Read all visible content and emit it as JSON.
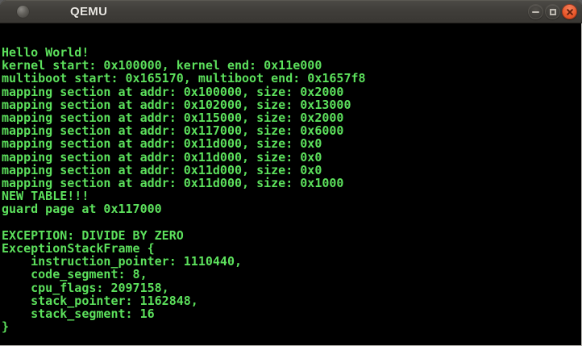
{
  "window": {
    "title": "QEMU",
    "controls": {
      "minimize_label": "minimize",
      "maximize_label": "maximize",
      "close_label": "close"
    },
    "icons": {
      "app_icon": "gray-sphere",
      "minimize": "minus",
      "maximize": "square-outline",
      "close": "x"
    },
    "colors": {
      "titlebar": "#403e3a",
      "title_text": "#e9e7e2",
      "close_button": "#e95420"
    }
  },
  "terminal": {
    "colors": {
      "background": "#000000",
      "text": "#5ce05c"
    },
    "lines": [
      "Hello World!",
      "kernel start: 0x100000, kernel end: 0x11e000",
      "multiboot start: 0x165170, multiboot end: 0x1657f8",
      "mapping section at addr: 0x100000, size: 0x2000",
      "mapping section at addr: 0x102000, size: 0x13000",
      "mapping section at addr: 0x115000, size: 0x2000",
      "mapping section at addr: 0x117000, size: 0x6000",
      "mapping section at addr: 0x11d000, size: 0x0",
      "mapping section at addr: 0x11d000, size: 0x0",
      "mapping section at addr: 0x11d000, size: 0x0",
      "mapping section at addr: 0x11d000, size: 0x1000",
      "NEW TABLE!!!",
      "guard page at 0x117000",
      "",
      "EXCEPTION: DIVIDE BY ZERO",
      "ExceptionStackFrame {",
      "    instruction_pointer: 1110440,",
      "    code_segment: 8,",
      "    cpu_flags: 2097158,",
      "    stack_pointer: 1162848,",
      "    stack_segment: 16",
      "}"
    ]
  }
}
